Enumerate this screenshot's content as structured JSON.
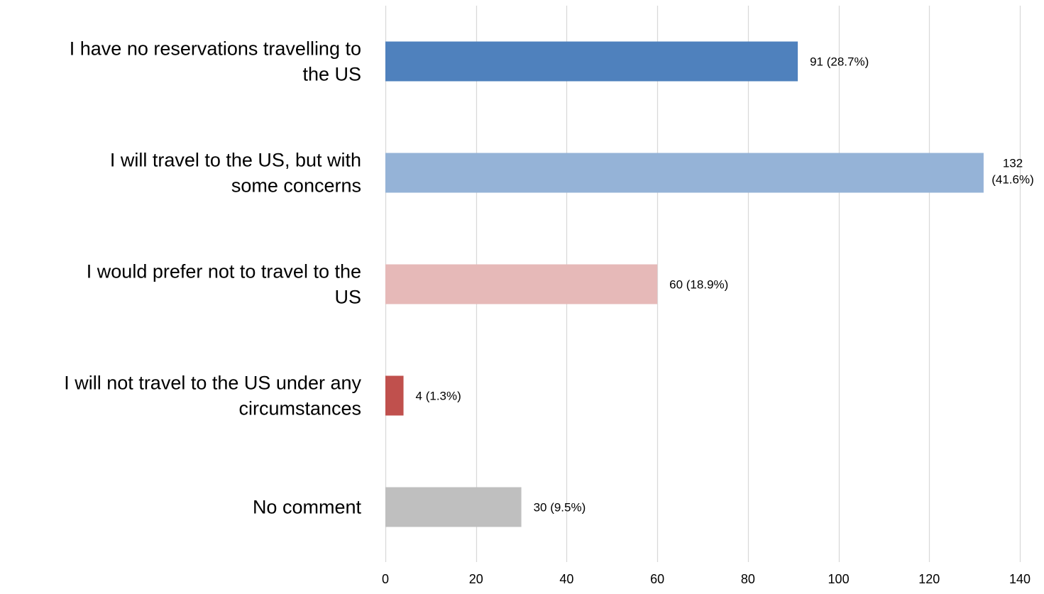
{
  "chart_data": {
    "type": "bar",
    "orientation": "horizontal",
    "title": "",
    "xlabel": "",
    "ylabel": "",
    "xlim": [
      0,
      140
    ],
    "x_ticks": [
      0,
      20,
      40,
      60,
      80,
      100,
      120,
      140
    ],
    "grid": "vertical",
    "legend": "none",
    "categories": [
      [
        "I have no reservations travelling to",
        "the US"
      ],
      [
        "I will travel to the US, but with",
        "some concerns"
      ],
      [
        "I would prefer not to travel to the",
        "US"
      ],
      [
        "I will not travel to the US under any",
        "circumstances"
      ],
      [
        "No comment"
      ]
    ],
    "values": [
      91,
      132,
      60,
      4,
      30
    ],
    "data_labels": [
      [
        "91 (28.7%)"
      ],
      [
        "132",
        "(41.6%)"
      ],
      [
        "60 (18.9%)"
      ],
      [
        "4 (1.3%)"
      ],
      [
        "30 (9.5%)"
      ]
    ],
    "colors": [
      "#4f81bd",
      "#95b3d7",
      "#e6b9b8",
      "#c0504d",
      "#bfbfbf"
    ],
    "gridline_color": "#d9d9d9"
  }
}
